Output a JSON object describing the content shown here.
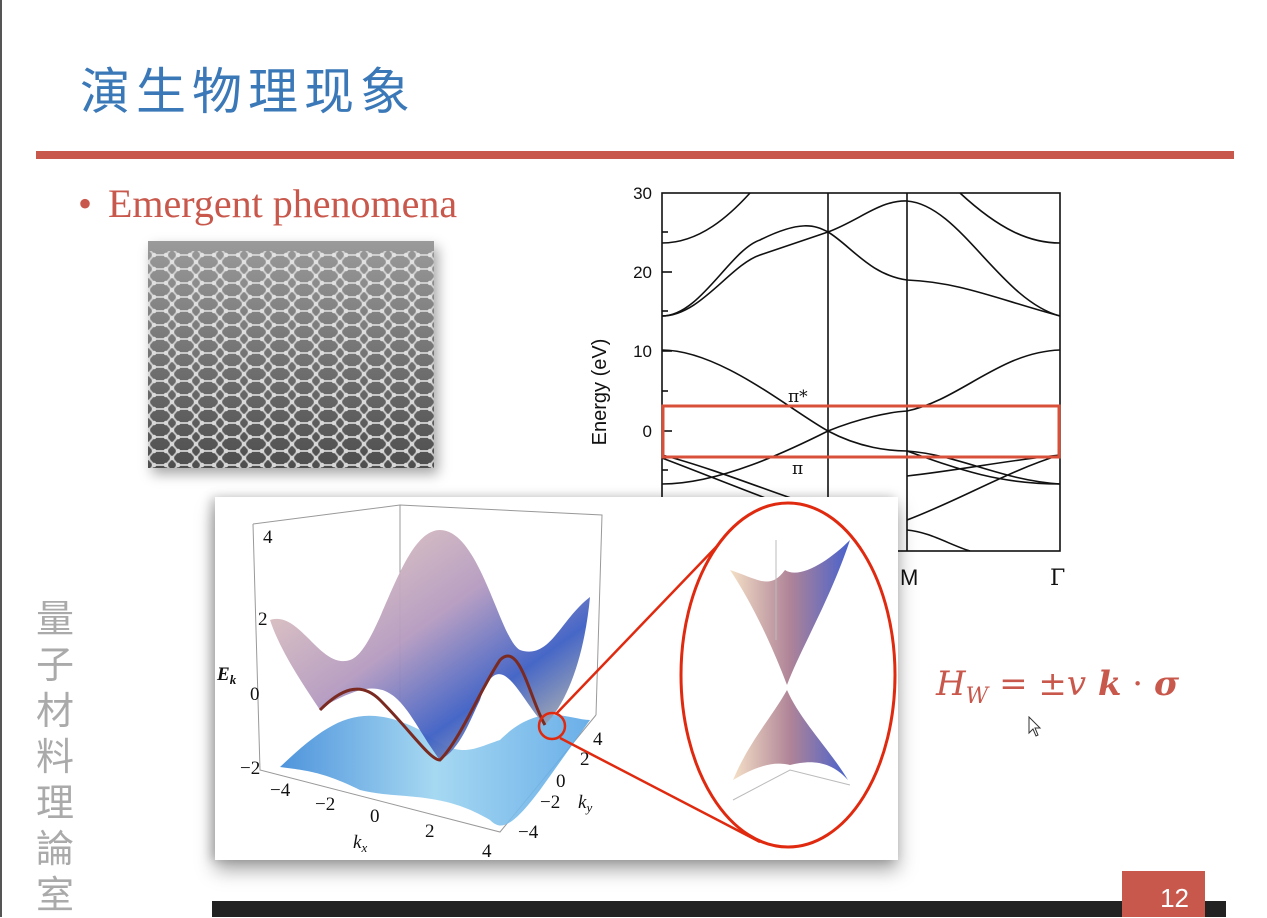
{
  "slide": {
    "title": "演生物理现象",
    "bullet": "Emergent phenomena",
    "page_number": "12",
    "watermark": "量子材料理論室",
    "accent_color": "#c9584c",
    "title_color": "#3a78b8"
  },
  "band_structure": {
    "ylabel": "Energy (eV)",
    "yticks": [
      "30",
      "20",
      "10",
      "0"
    ],
    "xticks": [
      "M",
      "Γ"
    ],
    "band_labels": {
      "upper": "π*",
      "lower": "π"
    },
    "ylim": [
      -12,
      30
    ],
    "highlight_color": "#d9503a"
  },
  "dispersion_3d": {
    "zlabel": "E",
    "zlabel_sub": "k",
    "xlabel": "k",
    "xlabel_sub": "x",
    "ylabel": "k",
    "ylabel_sub": "y",
    "zticks": [
      "4",
      "2",
      "0",
      "−2"
    ],
    "xticks": [
      "−4",
      "−2",
      "0",
      "2",
      "4"
    ],
    "yticks": [
      "4",
      "2",
      "0",
      "−2",
      "−4"
    ]
  },
  "formula": {
    "H": "H",
    "sub": "W",
    "rest_1": " = ±",
    "v": "v",
    "k": " k",
    "dot": " · ",
    "sigma": "σ"
  }
}
